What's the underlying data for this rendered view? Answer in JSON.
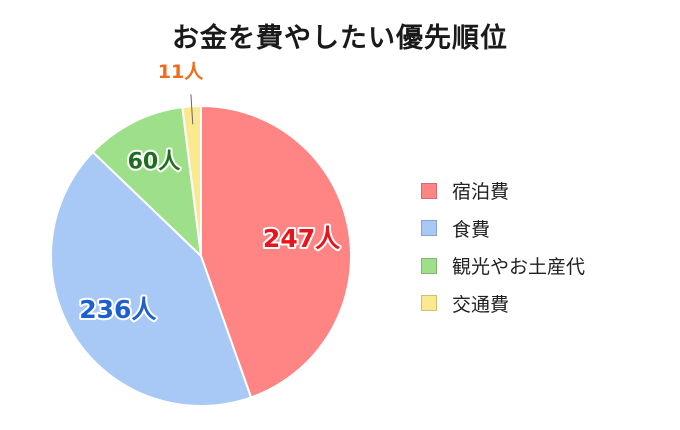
{
  "chart_data": {
    "type": "pie",
    "title": "お金を費やしたい優先順位",
    "slices": [
      {
        "label": "宿泊費",
        "value": 247,
        "value_label": "247人",
        "color": "#ff8585",
        "label_color": "#e8141c"
      },
      {
        "label": "食費",
        "value": 236,
        "value_label": "236人",
        "color": "#a8c8f5",
        "label_color": "#1e5fcf"
      },
      {
        "label": "観光やお土産代",
        "value": 60,
        "value_label": "60人",
        "color": "#9ee08a",
        "label_color": "#1f6e1f"
      },
      {
        "label": "交通費",
        "value": 11,
        "value_label": "11人",
        "color": "#fbe98f",
        "label_color": "#f26b1d"
      }
    ],
    "legend_position": "right"
  }
}
